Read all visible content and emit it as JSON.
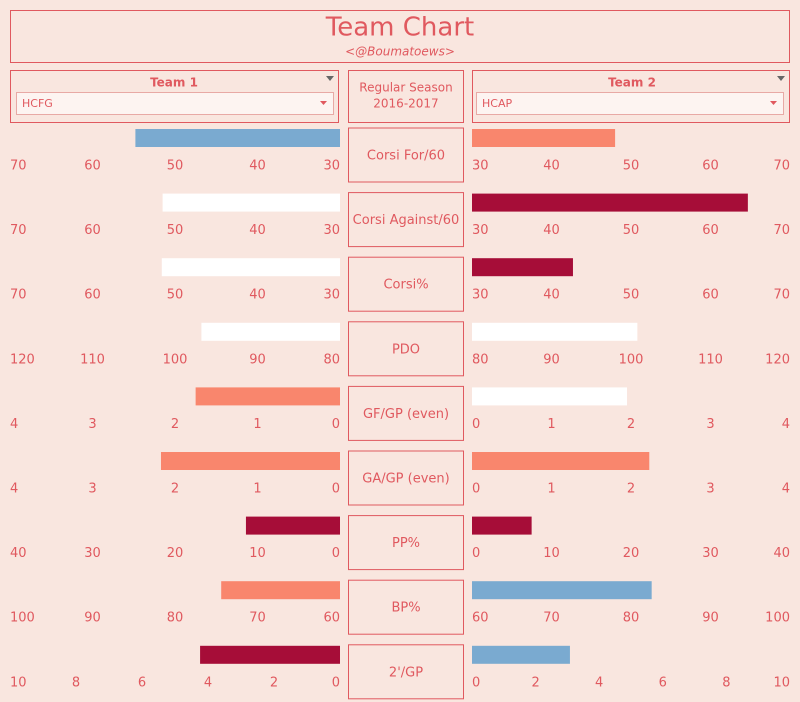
{
  "title": "Team Chart",
  "subtitle": "<@Boumatoews>",
  "team1": {
    "label": "Team 1",
    "selected": "HCFG"
  },
  "team2": {
    "label": "Team 2",
    "selected": "HCAP"
  },
  "season": [
    "Regular Season",
    "2016-2017"
  ],
  "chart_data": [
    {
      "type": "bar",
      "title": "Corsi For/60",
      "left": {
        "value": 54.8,
        "color": "#7aaad0",
        "xlim": [
          70,
          30
        ],
        "xticks": [
          70,
          60,
          50,
          40,
          30
        ]
      },
      "right": {
        "value": 48.0,
        "color": "#f9866d",
        "xlim": [
          30,
          70
        ],
        "xticks": [
          30,
          40,
          50,
          60,
          70
        ]
      }
    },
    {
      "type": "bar",
      "title": "Corsi Against/60",
      "left": {
        "value": 51.5,
        "color": "#ffffff",
        "xlim": [
          70,
          30
        ],
        "xticks": [
          70,
          60,
          50,
          40,
          30
        ]
      },
      "right": {
        "value": 64.7,
        "color": "#a60d38",
        "xlim": [
          30,
          70
        ],
        "xticks": [
          30,
          40,
          50,
          60,
          70
        ]
      }
    },
    {
      "type": "bar",
      "title": "Corsi%",
      "left": {
        "value": 51.6,
        "color": "#ffffff",
        "xlim": [
          70,
          30
        ],
        "xticks": [
          70,
          60,
          50,
          40,
          30
        ]
      },
      "right": {
        "value": 42.7,
        "color": "#a60d38",
        "xlim": [
          30,
          70
        ],
        "xticks": [
          30,
          40,
          50,
          60,
          70
        ]
      }
    },
    {
      "type": "bar",
      "title": "PDO",
      "left": {
        "value": 96.8,
        "color": "#ffffff",
        "xlim": [
          120,
          80
        ],
        "xticks": [
          120,
          110,
          100,
          90,
          80
        ]
      },
      "right": {
        "value": 100.8,
        "color": "#ffffff",
        "xlim": [
          80,
          120
        ],
        "xticks": [
          80,
          90,
          100,
          110,
          120
        ]
      }
    },
    {
      "type": "bar",
      "title": "GF/GP (even)",
      "left": {
        "value": 1.75,
        "color": "#f9866d",
        "xlim": [
          4,
          0
        ],
        "xticks": [
          4,
          3,
          2,
          1,
          0
        ]
      },
      "right": {
        "value": 1.95,
        "color": "#ffffff",
        "xlim": [
          0,
          4
        ],
        "xticks": [
          0,
          1,
          2,
          3,
          4
        ]
      }
    },
    {
      "type": "bar",
      "title": "GA/GP (even)",
      "left": {
        "value": 2.17,
        "color": "#f9866d",
        "xlim": [
          4,
          0
        ],
        "xticks": [
          4,
          3,
          2,
          1,
          0
        ]
      },
      "right": {
        "value": 2.23,
        "color": "#f9866d",
        "xlim": [
          0,
          4
        ],
        "xticks": [
          0,
          1,
          2,
          3,
          4
        ]
      }
    },
    {
      "type": "bar",
      "title": "PP%",
      "left": {
        "value": 11.4,
        "color": "#a60d38",
        "xlim": [
          40,
          0
        ],
        "xticks": [
          40,
          30,
          20,
          10,
          0
        ]
      },
      "right": {
        "value": 7.5,
        "color": "#a60d38",
        "xlim": [
          0,
          40
        ],
        "xticks": [
          0,
          10,
          20,
          30,
          40
        ]
      }
    },
    {
      "type": "bar",
      "title": "BP%",
      "left": {
        "value": 74.4,
        "color": "#f9866d",
        "xlim": [
          100,
          60
        ],
        "xticks": [
          100,
          90,
          80,
          70,
          60
        ]
      },
      "right": {
        "value": 82.6,
        "color": "#7aaad0",
        "xlim": [
          60,
          100
        ],
        "xticks": [
          60,
          70,
          80,
          90,
          100
        ]
      }
    },
    {
      "type": "bar",
      "title": "2'/GP",
      "left": {
        "value": 4.24,
        "color": "#a60d38",
        "xlim": [
          10,
          0
        ],
        "xticks": [
          10,
          8,
          6,
          4,
          2,
          0
        ]
      },
      "right": {
        "value": 3.08,
        "color": "#7aaad0",
        "xlim": [
          0,
          10
        ],
        "xticks": [
          0,
          2,
          4,
          6,
          8,
          10
        ]
      }
    }
  ]
}
